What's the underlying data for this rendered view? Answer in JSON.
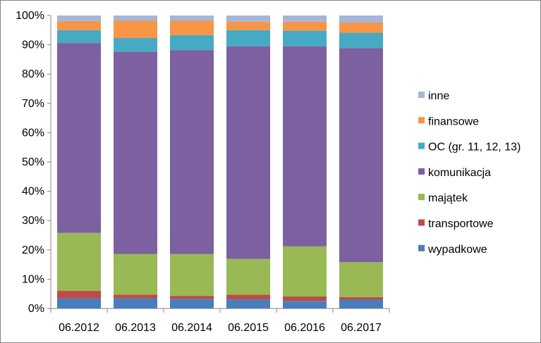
{
  "chart_data": {
    "type": "bar",
    "stacked": true,
    "percent_stacked": true,
    "categories": [
      "06.2012",
      "06.2013",
      "06.2014",
      "06.2015",
      "06.2016",
      "06.2017"
    ],
    "series": [
      {
        "name": "wypadkowe",
        "color": "#4a7ebb",
        "values": [
          3.5,
          3.5,
          3.3,
          3.1,
          2.6,
          3.0
        ]
      },
      {
        "name": "transportowe",
        "color": "#be4b48",
        "values": [
          2.5,
          1.2,
          1.0,
          1.6,
          1.5,
          0.9
        ]
      },
      {
        "name": "majątek",
        "color": "#98b954",
        "values": [
          19.8,
          13.9,
          14.3,
          12.2,
          17.1,
          11.9
        ]
      },
      {
        "name": "komunikacja",
        "color": "#7d60a0",
        "values": [
          64.8,
          69.0,
          69.6,
          72.6,
          68.3,
          73.1
        ]
      },
      {
        "name": "OC (gr. 11, 12, 13)",
        "color": "#46aac5",
        "values": [
          4.4,
          4.7,
          5.1,
          5.5,
          5.3,
          5.2
        ]
      },
      {
        "name": "finansowe",
        "color": "#f79646",
        "values": [
          3.1,
          5.9,
          4.9,
          2.9,
          3.1,
          3.5
        ]
      },
      {
        "name": "inne",
        "color": "#a5b6d8",
        "values": [
          1.9,
          1.8,
          1.8,
          2.1,
          2.1,
          2.4
        ]
      }
    ],
    "legend_order": [
      "inne",
      "finansowe",
      "OC (gr. 11, 12, 13)",
      "komunikacja",
      "majątek",
      "transportowe",
      "wypadkowe"
    ],
    "yticks": [
      "0%",
      "10%",
      "20%",
      "30%",
      "40%",
      "50%",
      "60%",
      "70%",
      "80%",
      "90%",
      "100%"
    ],
    "ylim": [
      0,
      100
    ],
    "legend_position": "right",
    "grid": false
  }
}
